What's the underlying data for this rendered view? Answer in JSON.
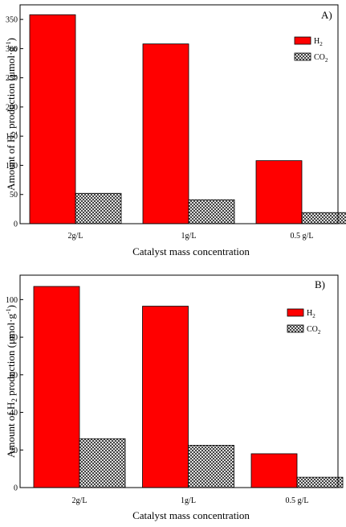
{
  "figure": {
    "xlabel": "Catalyst mass concentration",
    "ylabel_prefix": "Amount of H",
    "ylabel_sub": "2",
    "ylabel_mid": " production (μmol·g",
    "ylabel_sup": "-1",
    "ylabel_suffix": ")"
  },
  "chart_data": [
    {
      "type": "bar",
      "panel_label": "A)",
      "categories": [
        "2g/L",
        "1g/L",
        "0.5 g/L"
      ],
      "series": [
        {
          "name": "H2",
          "legend_main": "H",
          "legend_sub": "2",
          "color": "#ff0000",
          "pattern": "solid",
          "values": [
            358,
            308,
            108
          ]
        },
        {
          "name": "CO2",
          "legend_main": "CO",
          "legend_sub": "2",
          "color": "#000000",
          "pattern": "crosshatch",
          "values": [
            52,
            41,
            19
          ]
        }
      ],
      "yticks": [
        0,
        50,
        100,
        150,
        200,
        250,
        300,
        350
      ],
      "ylim": [
        0,
        375
      ],
      "xlabel": "Catalyst mass concentration",
      "legend_position": "top-right",
      "grid": false
    },
    {
      "type": "bar",
      "panel_label": "B)",
      "categories": [
        "2g/L",
        "1g/L",
        "0.5 g/L"
      ],
      "series": [
        {
          "name": "H2",
          "legend_main": "H",
          "legend_sub": "2",
          "color": "#ff0000",
          "pattern": "solid",
          "values": [
            107,
            96.5,
            18
          ]
        },
        {
          "name": "CO2",
          "legend_main": "CO",
          "legend_sub": "2",
          "color": "#000000",
          "pattern": "crosshatch",
          "values": [
            26,
            22.5,
            5.5
          ]
        }
      ],
      "yticks": [
        0,
        20,
        40,
        60,
        80,
        100
      ],
      "ylim": [
        0,
        113
      ],
      "xlabel": "Catalyst mass concentration",
      "legend_position": "top-right",
      "grid": false
    }
  ]
}
